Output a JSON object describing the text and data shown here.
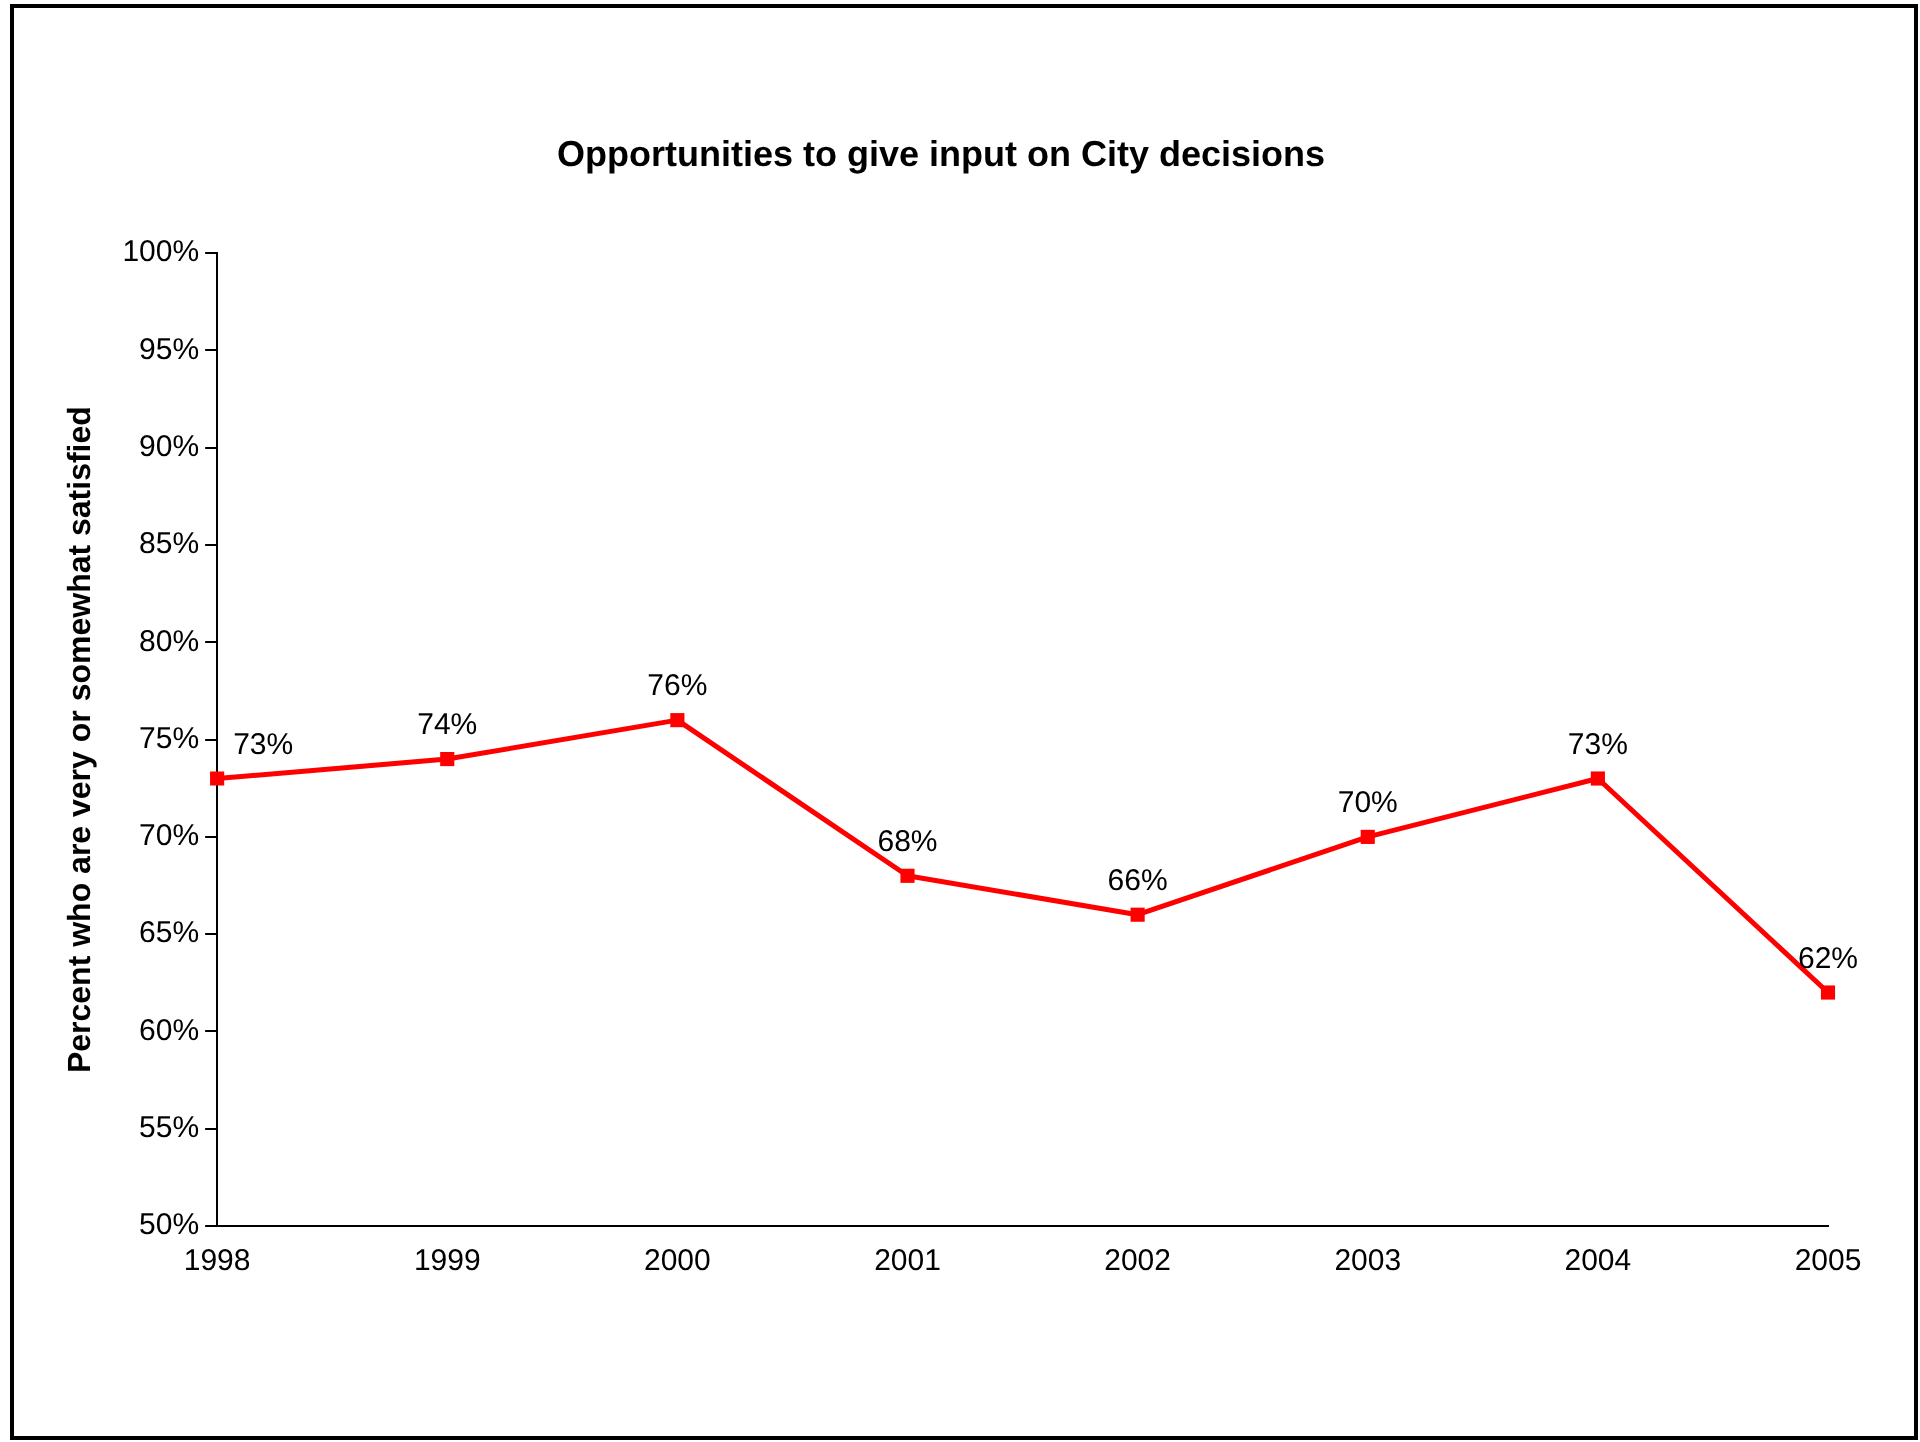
{
  "chart_data": {
    "type": "line",
    "title": "Opportunities to give input on City decisions",
    "ylabel": "Percent who are very or somewhat satisfied",
    "categories": [
      "1998",
      "1999",
      "2000",
      "2001",
      "2002",
      "2003",
      "2004",
      "2005"
    ],
    "series": [
      {
        "color": "#ff0000",
        "values": [
          73,
          74,
          76,
          68,
          66,
          70,
          73,
          62
        ],
        "value_labels": [
          "73%",
          "74%",
          "76%",
          "68%",
          "66%",
          "70%",
          "73%",
          "62%"
        ]
      }
    ],
    "ylim": [
      50,
      100
    ],
    "yticks": [
      {
        "value": 50,
        "label": "50%"
      },
      {
        "value": 55,
        "label": "55%"
      },
      {
        "value": 60,
        "label": "60%"
      },
      {
        "value": 65,
        "label": "65%"
      },
      {
        "value": 70,
        "label": "70%"
      },
      {
        "value": 75,
        "label": "75%"
      },
      {
        "value": 80,
        "label": "80%"
      },
      {
        "value": 85,
        "label": "85%"
      },
      {
        "value": 90,
        "label": "90%"
      },
      {
        "value": 95,
        "label": "95%"
      },
      {
        "value": 100,
        "label": "100%"
      }
    ],
    "grid": false,
    "legend": false,
    "marker": "square",
    "line_style": "solid"
  }
}
